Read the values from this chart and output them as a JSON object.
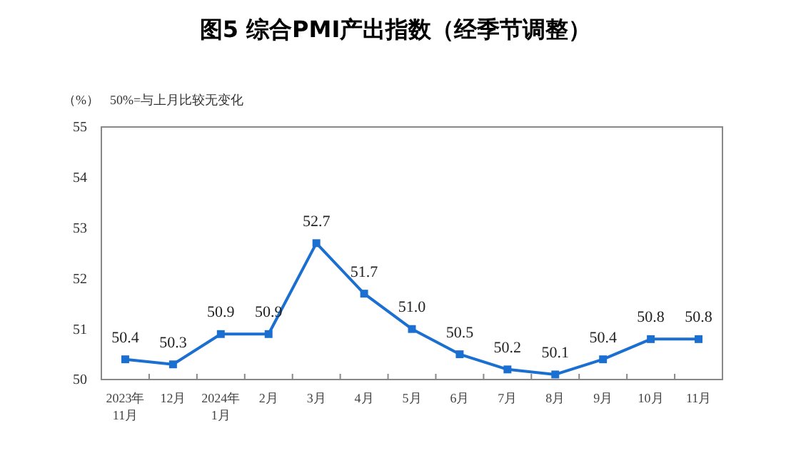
{
  "chart_data": {
    "type": "line",
    "title": "图5  综合PMI产出指数（经季节调整）",
    "ylabel": "（%）",
    "annotations": [
      "50%=与上月比较无变化"
    ],
    "categories": [
      "2023年\n11月",
      "12月",
      "2024年\n1月",
      "2月",
      "3月",
      "4月",
      "5月",
      "6月",
      "7月",
      "8月",
      "9月",
      "10月",
      "11月"
    ],
    "series": [
      {
        "color": "#1a6fd0",
        "values": [
          50.4,
          50.3,
          50.9,
          50.9,
          52.7,
          51.7,
          51.0,
          50.5,
          50.2,
          50.1,
          50.4,
          50.8,
          50.8
        ],
        "value_labels": [
          "50.4",
          "50.3",
          "50.9",
          "50.9",
          "52.7",
          "51.7",
          "51.0",
          "50.5",
          "50.2",
          "50.1",
          "50.4",
          "50.8",
          "50.8"
        ]
      }
    ],
    "ylim": [
      50,
      55
    ],
    "yticks": [
      50,
      51,
      52,
      53,
      54,
      55
    ],
    "grid": false,
    "marker": "square",
    "line_style": "solid"
  }
}
